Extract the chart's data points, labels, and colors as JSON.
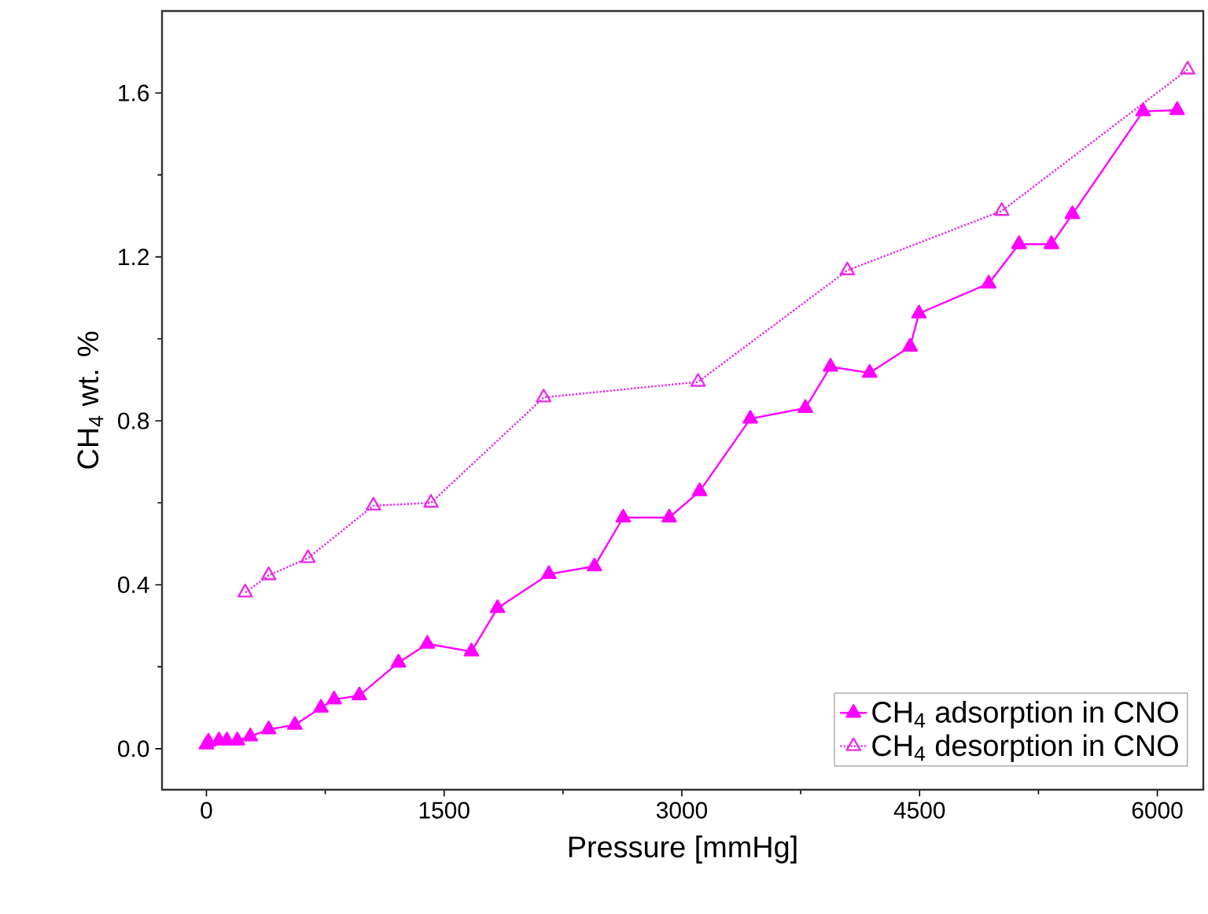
{
  "chart_data": {
    "type": "line",
    "xlabel": "Pressure [mmHg]",
    "ylabel": "CH$_{4}$ wt. %",
    "xlim": [
      -280,
      6290
    ],
    "ylim": [
      -0.1,
      1.8
    ],
    "xticks": [
      0,
      1500,
      3000,
      4500,
      6000
    ],
    "yticks": [
      {
        "value": 0,
        "label": "0.0"
      },
      {
        "value": 0.4,
        "label": "0.4"
      },
      {
        "value": 0.8,
        "label": "0.8"
      },
      {
        "value": 1.2,
        "label": "1.2"
      },
      {
        "value": 1.6,
        "label": "1.6"
      }
    ],
    "legend": "bottom right",
    "grid": false,
    "series": [
      {
        "name": "CH$_{4}$ adsorption in CNO",
        "color": "#ff00ff",
        "marker": "triangle",
        "line_style": "solid",
        "x": [
          0,
          13,
          79,
          129,
          195,
          277,
          393,
          558,
          723,
          806,
          965,
          1212,
          1394,
          1672,
          1837,
          2161,
          2448,
          2630,
          2920,
          3112,
          3432,
          3779,
          3938,
          4185,
          4440,
          4496,
          4936,
          5127,
          5332,
          5464,
          5910,
          6125
        ],
        "values": [
          0.01,
          0.017,
          0.02,
          0.02,
          0.02,
          0.03,
          0.047,
          0.058,
          0.1,
          0.12,
          0.13,
          0.21,
          0.256,
          0.237,
          0.343,
          0.426,
          0.445,
          0.564,
          0.564,
          0.628,
          0.805,
          0.831,
          0.932,
          0.917,
          0.981,
          1.062,
          1.135,
          1.231,
          1.231,
          1.304,
          1.555,
          1.558
        ]
      },
      {
        "name": "CH$_{4}$ desorption in CNO",
        "color": "#e62ee6",
        "marker": "triangle",
        "line_style": "dotted",
        "x": [
          245,
          393,
          641,
          1054,
          1417,
          2128,
          3102,
          4044,
          5018,
          6191
        ],
        "values": [
          0.381,
          0.423,
          0.465,
          0.593,
          0.6,
          0.857,
          0.895,
          1.167,
          1.312,
          1.657
        ]
      }
    ]
  }
}
